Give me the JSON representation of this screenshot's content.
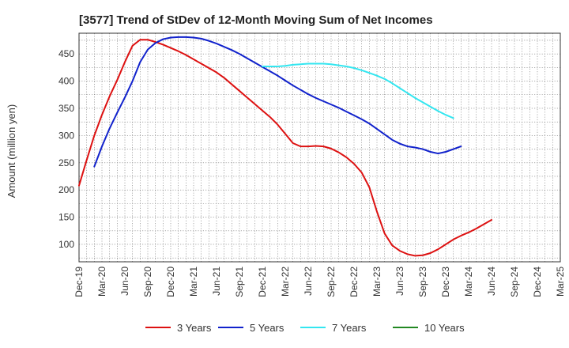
{
  "chart_data": {
    "type": "line",
    "title": "[3577]  Trend of StDev of 12-Month Moving Sum of Net Incomes",
    "xlabel": "",
    "ylabel": "Amount (million yen)",
    "ylim": [
      68,
      488
    ],
    "yticks": [
      100,
      150,
      200,
      250,
      300,
      350,
      400,
      450
    ],
    "xticks": [
      "Dec-19",
      "Mar-20",
      "Jun-20",
      "Sep-20",
      "Dec-20",
      "Mar-21",
      "Jun-21",
      "Sep-21",
      "Dec-21",
      "Mar-22",
      "Jun-22",
      "Sep-22",
      "Dec-22",
      "Mar-23",
      "Jun-23",
      "Sep-23",
      "Dec-23",
      "Mar-24",
      "Jun-24",
      "Sep-24",
      "Dec-24",
      "Mar-25"
    ],
    "grid": true,
    "legend_position": "bottom",
    "series": [
      {
        "name": "3 Years",
        "color": "#dd1111",
        "start_index": 0,
        "values": [
          208,
          255,
          300,
          338,
          372,
          402,
          435,
          465,
          476,
          476,
          472,
          467,
          461,
          455,
          448,
          440,
          432,
          424,
          416,
          406,
          394,
          382,
          370,
          358,
          346,
          334,
          320,
          303,
          286,
          280,
          280,
          281,
          280,
          276,
          269,
          260,
          248,
          232,
          205,
          160,
          120,
          98,
          88,
          82,
          79,
          80,
          84,
          91,
          100,
          109,
          116,
          122,
          129,
          137,
          145
        ]
      },
      {
        "name": "5 Years",
        "color": "#1122cc",
        "start_index": 2,
        "values": [
          243,
          280,
          313,
          342,
          370,
          400,
          435,
          458,
          470,
          477,
          480,
          481,
          481,
          480,
          478,
          474,
          469,
          463,
          457,
          450,
          442,
          434,
          426,
          418,
          410,
          401,
          392,
          384,
          376,
          369,
          363,
          357,
          351,
          344,
          337,
          330,
          322,
          312,
          302,
          292,
          285,
          280,
          278,
          275,
          270,
          267,
          270,
          275,
          280
        ]
      },
      {
        "name": "7 Years",
        "color": "#33e6f0",
        "start_index": 24,
        "values": [
          427,
          427,
          427,
          428,
          430,
          431,
          432,
          432,
          432,
          431,
          429,
          427,
          424,
          420,
          415,
          410,
          404,
          396,
          387,
          378,
          369,
          361,
          353,
          345,
          338,
          332
        ]
      },
      {
        "name": "10 Years",
        "color": "#228822",
        "start_index": 0,
        "values": []
      }
    ]
  }
}
